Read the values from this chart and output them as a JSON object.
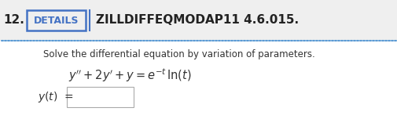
{
  "number": "12.",
  "details_text": "DETAILS",
  "header_ref": "ZILLDIFFEQMODAP11 4.6.015.",
  "instruction": "Solve the differential equation by variation of parameters.",
  "bg_top": "#efefef",
  "bg_bottom": "#ffffff",
  "details_box_color": "#4472c4",
  "header_color": "#222222",
  "text_color": "#333333",
  "dot_color": "#5b9bd5",
  "yt_label_color": "#555555",
  "fig_width": 5.05,
  "fig_height": 1.7,
  "dpi": 100
}
